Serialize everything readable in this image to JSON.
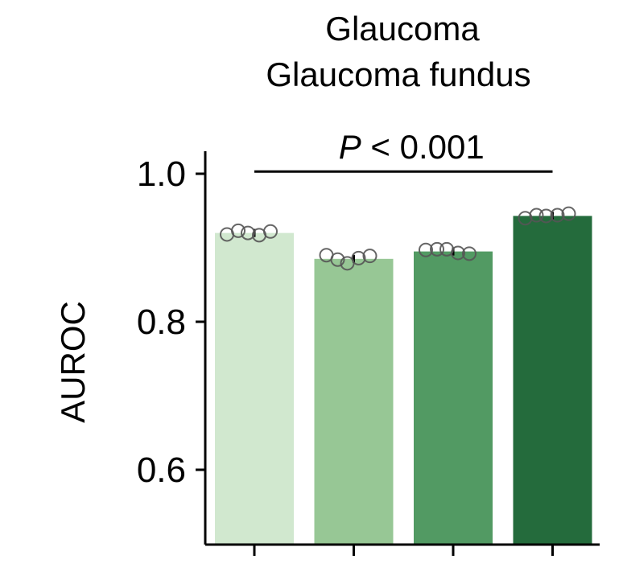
{
  "chart_data": {
    "type": "bar",
    "title": "Glaucoma",
    "subtitle": "Glaucoma fundus",
    "ylabel": "AUROC",
    "xlabel": "",
    "ylim": [
      0.5,
      1.04
    ],
    "yticks": [
      0.6,
      0.8,
      1.0
    ],
    "ytick_labels": [
      "0.6",
      "0.8",
      "1.0"
    ],
    "categories": [
      "",
      "",
      "",
      ""
    ],
    "values": [
      0.92,
      0.885,
      0.895,
      0.943
    ],
    "colors": [
      "#d1e8cf",
      "#97c795",
      "#529a63",
      "#246b3c"
    ],
    "points": [
      [
        0.918,
        0.923,
        0.92,
        0.917,
        0.922
      ],
      [
        0.89,
        0.884,
        0.879,
        0.886,
        0.889
      ],
      [
        0.897,
        0.898,
        0.898,
        0.893,
        0.892
      ],
      [
        0.94,
        0.944,
        0.943,
        0.944,
        0.946
      ]
    ],
    "annotation": {
      "p_italic": "P",
      "p_rest": " < 0.001",
      "from_bar": 0,
      "to_bar": 3,
      "y": 1.003
    },
    "grid": false
  }
}
